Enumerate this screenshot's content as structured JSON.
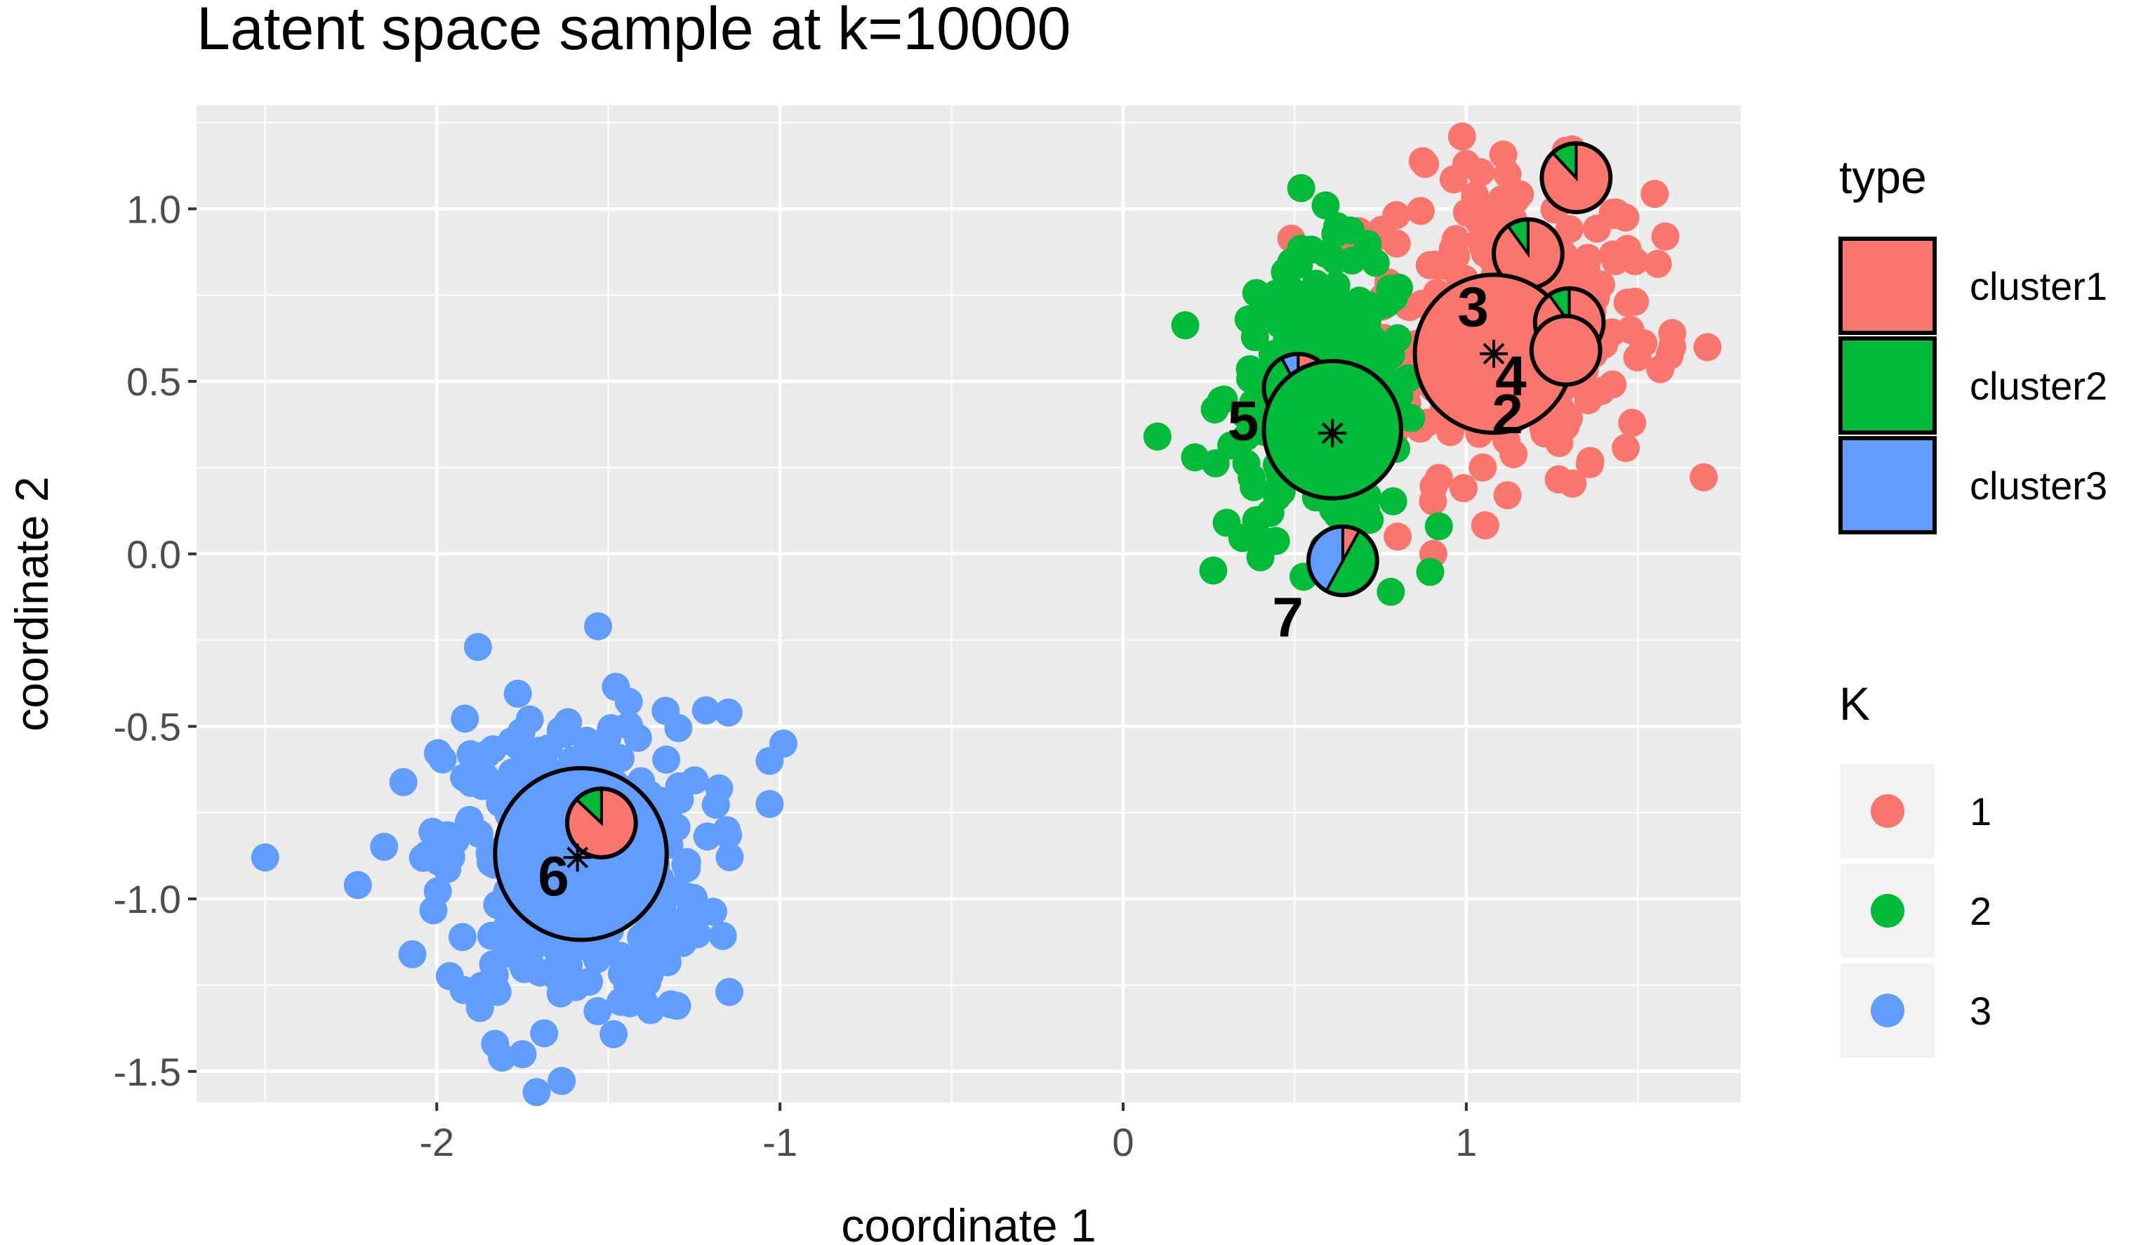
{
  "chart_data": {
    "type": "scatter",
    "title": "Latent space sample at k=10000",
    "xlabel": "coordinate 1",
    "ylabel": "coordinate 2",
    "xlim": [
      -2.7,
      1.8
    ],
    "ylim": [
      -1.59,
      1.3
    ],
    "x_ticks": [
      -2,
      -1,
      0,
      1
    ],
    "x_tick_labels": [
      "-2",
      "-1",
      "0",
      "1"
    ],
    "y_ticks": [
      1.0,
      0.5,
      0.0,
      -0.5,
      -1.0,
      -1.5
    ],
    "y_tick_labels": [
      "1.0",
      "0.5",
      "0.0",
      "-0.5",
      "-1.0",
      "-1.5"
    ],
    "grid": true,
    "legend_position": "right",
    "legend_type": {
      "title": "type",
      "items": [
        {
          "label": "cluster1",
          "color": "#F8766D"
        },
        {
          "label": "cluster2",
          "color": "#00BA38"
        },
        {
          "label": "cluster3",
          "color": "#619CFF"
        }
      ]
    },
    "legend_k": {
      "title": "K",
      "items": [
        {
          "label": "1",
          "color": "#F8766D"
        },
        {
          "label": "2",
          "color": "#00BA38"
        },
        {
          "label": "3",
          "color": "#619CFF"
        }
      ]
    },
    "series": [
      {
        "name": "1",
        "color": "#F8766D",
        "count": 280,
        "center": [
          1.12,
          0.66
        ],
        "spread": [
          0.21,
          0.22
        ],
        "samples": [
          [
            0.88,
            1.13
          ],
          [
            1.0,
            1.13
          ],
          [
            1.12,
            1.1
          ],
          [
            1.58,
            0.92
          ],
          [
            1.6,
            0.64
          ],
          [
            1.6,
            0.6
          ],
          [
            1.36,
            0.26
          ],
          [
            1.12,
            0.17
          ],
          [
            0.8,
            0.05
          ],
          [
            0.92,
            0.22
          ],
          [
            1.18,
            0.87
          ]
        ]
      },
      {
        "name": "2",
        "color": "#00BA38",
        "count": 240,
        "center": [
          0.58,
          0.46
        ],
        "spread": [
          0.14,
          0.2
        ],
        "samples": [
          [
            0.59,
            1.01
          ],
          [
            0.59,
            0.87
          ],
          [
            0.1,
            0.34
          ],
          [
            0.4,
            -0.01
          ],
          [
            0.78,
            -0.11
          ],
          [
            0.92,
            0.08
          ],
          [
            0.5,
            0.38
          ],
          [
            0.7,
            0.55
          ]
        ]
      },
      {
        "name": "3",
        "color": "#619CFF",
        "count": 380,
        "center": [
          -1.6,
          -0.9
        ],
        "spread": [
          0.19,
          0.22
        ],
        "samples": [
          [
            -2.5,
            -0.88
          ],
          [
            -2.23,
            -0.96
          ],
          [
            -1.88,
            -0.27
          ],
          [
            -1.53,
            -0.21
          ],
          [
            -1.15,
            -0.46
          ],
          [
            -0.99,
            -0.55
          ],
          [
            -1.03,
            -0.6
          ],
          [
            -1.81,
            -1.46
          ],
          [
            -1.75,
            -1.45
          ],
          [
            -1.83,
            -1.42
          ],
          [
            -1.3,
            -1.31
          ],
          [
            -1.38,
            -1.22
          ]
        ]
      }
    ],
    "centers": [
      {
        "label": "3",
        "x": 1.08,
        "y": 0.58
      },
      {
        "label": "5",
        "x": 0.61,
        "y": 0.35
      },
      {
        "label": "6",
        "x": -1.59,
        "y": -0.88
      }
    ],
    "pie_markers": [
      {
        "id": "p-top",
        "x": 1.32,
        "y": 1.09,
        "r": 0.1,
        "fractions": [
          0.88,
          0.12,
          0.0
        ]
      },
      {
        "id": "p-mid",
        "x": 1.18,
        "y": 0.87,
        "r": 0.1,
        "fractions": [
          0.9,
          0.1,
          0.0
        ]
      },
      {
        "id": "p-c1",
        "x": 1.08,
        "y": 0.58,
        "r": 0.23,
        "fractions": [
          1.0,
          0.0,
          0.0
        ]
      },
      {
        "id": "p-r1",
        "x": 1.3,
        "y": 0.67,
        "r": 0.1,
        "fractions": [
          0.9,
          0.1,
          0.0
        ]
      },
      {
        "id": "p-r2",
        "x": 1.29,
        "y": 0.59,
        "r": 0.1,
        "fractions": [
          1.0,
          0.0,
          0.0
        ]
      },
      {
        "id": "p-g1",
        "x": 0.51,
        "y": 0.48,
        "r": 0.1,
        "fractions": [
          0.1,
          0.82,
          0.08
        ]
      },
      {
        "id": "p-c2",
        "x": 0.61,
        "y": 0.36,
        "r": 0.2,
        "fractions": [
          0.0,
          1.0,
          0.0
        ]
      },
      {
        "id": "p-7",
        "x": 0.64,
        "y": -0.02,
        "r": 0.1,
        "fractions": [
          0.08,
          0.5,
          0.42
        ]
      },
      {
        "id": "p-c3",
        "x": -1.58,
        "y": -0.87,
        "r": 0.25,
        "fractions": [
          0.0,
          0.0,
          1.0
        ]
      },
      {
        "id": "p-b1",
        "x": -1.52,
        "y": -0.78,
        "r": 0.1,
        "fractions": [
          0.87,
          0.13,
          0.0
        ]
      }
    ],
    "annotations": [
      {
        "text": "3",
        "x": 1.02,
        "y": 0.66
      },
      {
        "text": "4",
        "x": 1.13,
        "y": 0.46
      },
      {
        "text": "2",
        "x": 1.12,
        "y": 0.35
      },
      {
        "text": "5",
        "x": 0.35,
        "y": 0.33
      },
      {
        "text": "7",
        "x": 0.48,
        "y": -0.24
      },
      {
        "text": "6",
        "x": -1.66,
        "y": -0.99
      }
    ]
  }
}
